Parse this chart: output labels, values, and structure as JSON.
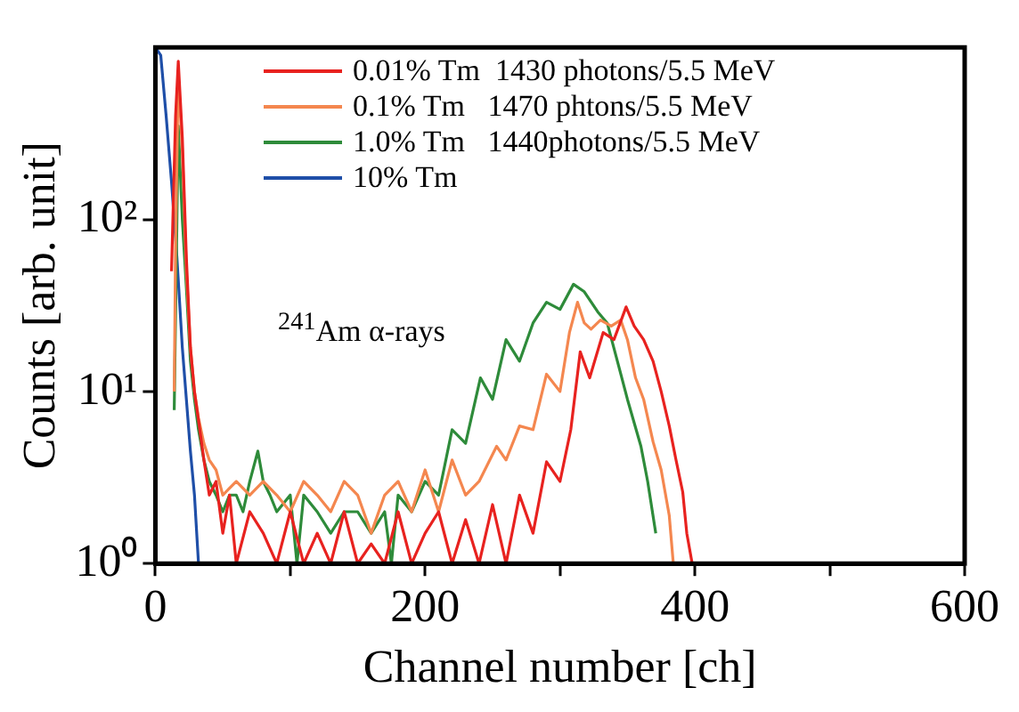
{
  "chart_data": {
    "type": "line",
    "xlabel": "Channel number [ch]",
    "ylabel": "Counts [arb. unit]",
    "annotations": [
      "$^{241}$Am α-rays"
    ],
    "log": "y",
    "grid": false,
    "legend": "top",
    "marker": "none",
    "line_style": "solid",
    "xlim": [
      0,
      600
    ],
    "xticks": [
      0,
      {
        "value": 100,
        "label": null
      },
      200,
      {
        "value": 300,
        "label": null
      },
      400,
      {
        "value": 500,
        "label": null
      },
      600
    ],
    "ylim": [
      1,
      1000
    ],
    "yticks": [
      {
        "value": 1,
        "label": "10⁰"
      },
      {
        "value": 10,
        "label": "10¹"
      },
      {
        "value": 100,
        "label": "10²"
      }
    ],
    "series": [
      {
        "name": "0.01% Tm  1430 photons/5.5 MeV",
        "color": "#e8221f",
        "x": [
          12,
          15,
          17,
          20,
          23,
          26,
          29,
          32,
          36,
          40,
          45,
          50,
          55,
          60,
          70,
          80,
          90,
          100,
          110,
          120,
          130,
          140,
          150,
          160,
          170,
          180,
          190,
          200,
          210,
          220,
          230,
          240,
          250,
          260,
          270,
          280,
          290,
          300,
          308,
          315,
          322,
          332,
          340,
          349,
          355,
          362,
          369,
          375,
          381,
          386,
          391,
          394,
          398
        ],
        "values": [
          50,
          400,
          830,
          300,
          60,
          18,
          10,
          6.8,
          4,
          2.5,
          3,
          1.5,
          2.5,
          1,
          2,
          1.5,
          1,
          2,
          1,
          1.5,
          1,
          2,
          1,
          1.3,
          1,
          2,
          1,
          1.5,
          2,
          1,
          1.8,
          1,
          2.2,
          1,
          2.5,
          1.5,
          3.9,
          3,
          6,
          17,
          12,
          22,
          20,
          31,
          24,
          20,
          15,
          10,
          6.3,
          4,
          2.6,
          1.5,
          1
        ]
      },
      {
        "name": "0.1% Tm   1470 phtons/5.5 MeV",
        "color": "#f4874f",
        "x": [
          14,
          15,
          17,
          20,
          23,
          26,
          29,
          32,
          36,
          40,
          45,
          50,
          60,
          70,
          80,
          90,
          100,
          110,
          120,
          130,
          140,
          150,
          160,
          170,
          180,
          190,
          200,
          210,
          220,
          230,
          240,
          253,
          260,
          270,
          280,
          290,
          300,
          307,
          313,
          318,
          323,
          330,
          338,
          345,
          350,
          356,
          362,
          369,
          375,
          381,
          384
        ],
        "values": [
          10,
          72,
          700,
          250,
          50,
          18,
          10,
          7,
          5,
          4,
          3.5,
          2.5,
          3,
          2.5,
          3,
          2.5,
          2,
          3,
          2.5,
          2,
          3,
          2.5,
          1.5,
          2.5,
          3,
          2,
          3.5,
          2,
          4,
          2.5,
          3,
          4.8,
          4,
          6.3,
          6,
          12.6,
          10,
          22,
          33,
          25,
          23,
          26,
          24,
          26,
          20,
          12,
          9,
          5.1,
          3.5,
          1.9,
          1
        ]
      },
      {
        "name": "1.0% Tm   1440photons/5.5 MeV",
        "color": "#2e8b3a",
        "x": [
          14,
          17,
          20,
          23,
          26,
          29,
          32,
          36,
          40,
          45,
          50,
          55,
          60,
          65,
          70,
          76,
          80,
          85,
          90,
          100,
          105,
          110,
          120,
          130,
          140,
          150,
          160,
          170,
          175,
          180,
          190,
          200,
          210,
          220,
          230,
          241,
          250,
          260,
          270,
          280,
          290,
          300,
          310,
          318,
          328,
          335,
          344,
          350,
          360,
          365,
          371
        ],
        "values": [
          7.8,
          350,
          100,
          40,
          15,
          9,
          6,
          4,
          3,
          2.5,
          2,
          2.5,
          2.5,
          2,
          3,
          4.5,
          3,
          2.5,
          2,
          2.5,
          1,
          2.5,
          2,
          1.5,
          2,
          2,
          1.5,
          2,
          1,
          2.5,
          2,
          3,
          2.5,
          6,
          5,
          12,
          9,
          20,
          15,
          25,
          33,
          30,
          42,
          38,
          29,
          25,
          13.6,
          9,
          4.8,
          3,
          1.5
        ]
      },
      {
        "name": "10% Tm",
        "color": "#1f4fa8",
        "x": [
          0,
          4,
          8,
          12,
          16,
          20,
          23,
          26,
          29,
          32,
          35
        ],
        "values": [
          1000,
          900,
          400,
          165,
          60,
          18,
          9,
          4.5,
          2.5,
          1,
          1
        ]
      }
    ]
  }
}
